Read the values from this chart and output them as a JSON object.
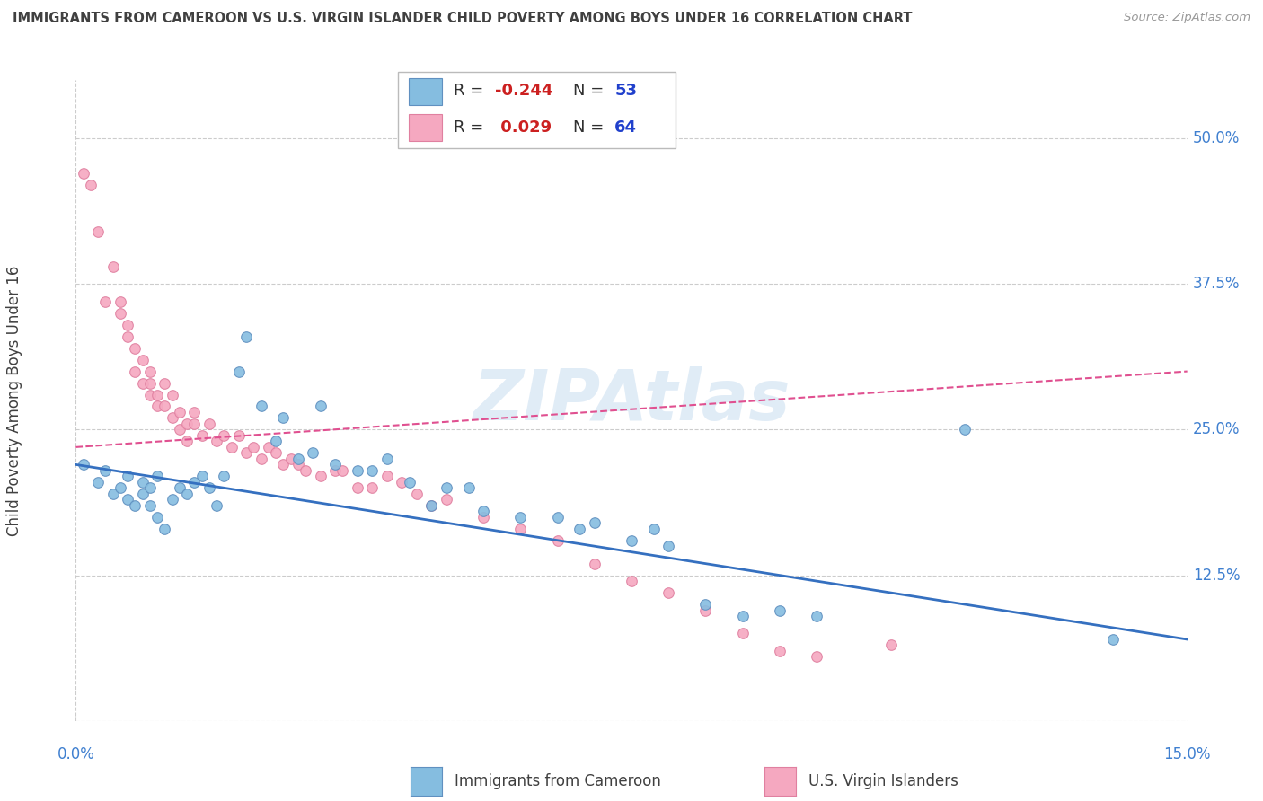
{
  "title": "IMMIGRANTS FROM CAMEROON VS U.S. VIRGIN ISLANDER CHILD POVERTY AMONG BOYS UNDER 16 CORRELATION CHART",
  "source": "Source: ZipAtlas.com",
  "ylabel": "Child Poverty Among Boys Under 16",
  "xlim": [
    0.0,
    0.15
  ],
  "ylim": [
    0.0,
    0.55
  ],
  "yticks": [
    0.0,
    0.125,
    0.25,
    0.375,
    0.5
  ],
  "yticklabels": [
    "",
    "12.5%",
    "25.0%",
    "37.5%",
    "50.0%"
  ],
  "blue_scatter_x": [
    0.001,
    0.003,
    0.004,
    0.005,
    0.006,
    0.007,
    0.007,
    0.008,
    0.009,
    0.009,
    0.01,
    0.01,
    0.011,
    0.011,
    0.012,
    0.013,
    0.014,
    0.015,
    0.016,
    0.017,
    0.018,
    0.019,
    0.02,
    0.022,
    0.023,
    0.025,
    0.027,
    0.028,
    0.03,
    0.032,
    0.033,
    0.035,
    0.038,
    0.04,
    0.042,
    0.045,
    0.048,
    0.05,
    0.053,
    0.055,
    0.06,
    0.065,
    0.068,
    0.07,
    0.075,
    0.078,
    0.08,
    0.085,
    0.09,
    0.095,
    0.1,
    0.12,
    0.14
  ],
  "blue_scatter_y": [
    0.22,
    0.205,
    0.215,
    0.195,
    0.2,
    0.19,
    0.21,
    0.185,
    0.195,
    0.205,
    0.2,
    0.185,
    0.21,
    0.175,
    0.165,
    0.19,
    0.2,
    0.195,
    0.205,
    0.21,
    0.2,
    0.185,
    0.21,
    0.3,
    0.33,
    0.27,
    0.24,
    0.26,
    0.225,
    0.23,
    0.27,
    0.22,
    0.215,
    0.215,
    0.225,
    0.205,
    0.185,
    0.2,
    0.2,
    0.18,
    0.175,
    0.175,
    0.165,
    0.17,
    0.155,
    0.165,
    0.15,
    0.1,
    0.09,
    0.095,
    0.09,
    0.25,
    0.07
  ],
  "pink_scatter_x": [
    0.001,
    0.002,
    0.003,
    0.004,
    0.005,
    0.006,
    0.006,
    0.007,
    0.007,
    0.008,
    0.008,
    0.009,
    0.009,
    0.01,
    0.01,
    0.01,
    0.011,
    0.011,
    0.012,
    0.012,
    0.013,
    0.013,
    0.014,
    0.014,
    0.015,
    0.015,
    0.016,
    0.016,
    0.017,
    0.018,
    0.019,
    0.02,
    0.021,
    0.022,
    0.023,
    0.024,
    0.025,
    0.026,
    0.027,
    0.028,
    0.029,
    0.03,
    0.031,
    0.033,
    0.035,
    0.036,
    0.038,
    0.04,
    0.042,
    0.044,
    0.046,
    0.048,
    0.05,
    0.055,
    0.06,
    0.065,
    0.07,
    0.075,
    0.08,
    0.085,
    0.09,
    0.095,
    0.1,
    0.11
  ],
  "pink_scatter_y": [
    0.47,
    0.46,
    0.42,
    0.36,
    0.39,
    0.35,
    0.36,
    0.33,
    0.34,
    0.32,
    0.3,
    0.31,
    0.29,
    0.29,
    0.28,
    0.3,
    0.28,
    0.27,
    0.29,
    0.27,
    0.28,
    0.26,
    0.265,
    0.25,
    0.255,
    0.24,
    0.265,
    0.255,
    0.245,
    0.255,
    0.24,
    0.245,
    0.235,
    0.245,
    0.23,
    0.235,
    0.225,
    0.235,
    0.23,
    0.22,
    0.225,
    0.22,
    0.215,
    0.21,
    0.215,
    0.215,
    0.2,
    0.2,
    0.21,
    0.205,
    0.195,
    0.185,
    0.19,
    0.175,
    0.165,
    0.155,
    0.135,
    0.12,
    0.11,
    0.095,
    0.075,
    0.06,
    0.055,
    0.065
  ],
  "blue_line_x": [
    0.0,
    0.15
  ],
  "blue_line_y": [
    0.22,
    0.07
  ],
  "pink_line_x": [
    0.0,
    0.15
  ],
  "pink_line_y": [
    0.235,
    0.3
  ],
  "scatter_size": 70,
  "blue_color": "#85bde0",
  "pink_color": "#f5a8c0",
  "blue_edge": "#6090c0",
  "pink_edge": "#e080a0",
  "blue_line_color": "#3570c0",
  "pink_line_color": "#e05090",
  "grid_color": "#cccccc",
  "title_color": "#404040",
  "source_color": "#999999",
  "axis_color": "#4080d0",
  "watermark_color": "#c8ddf0"
}
